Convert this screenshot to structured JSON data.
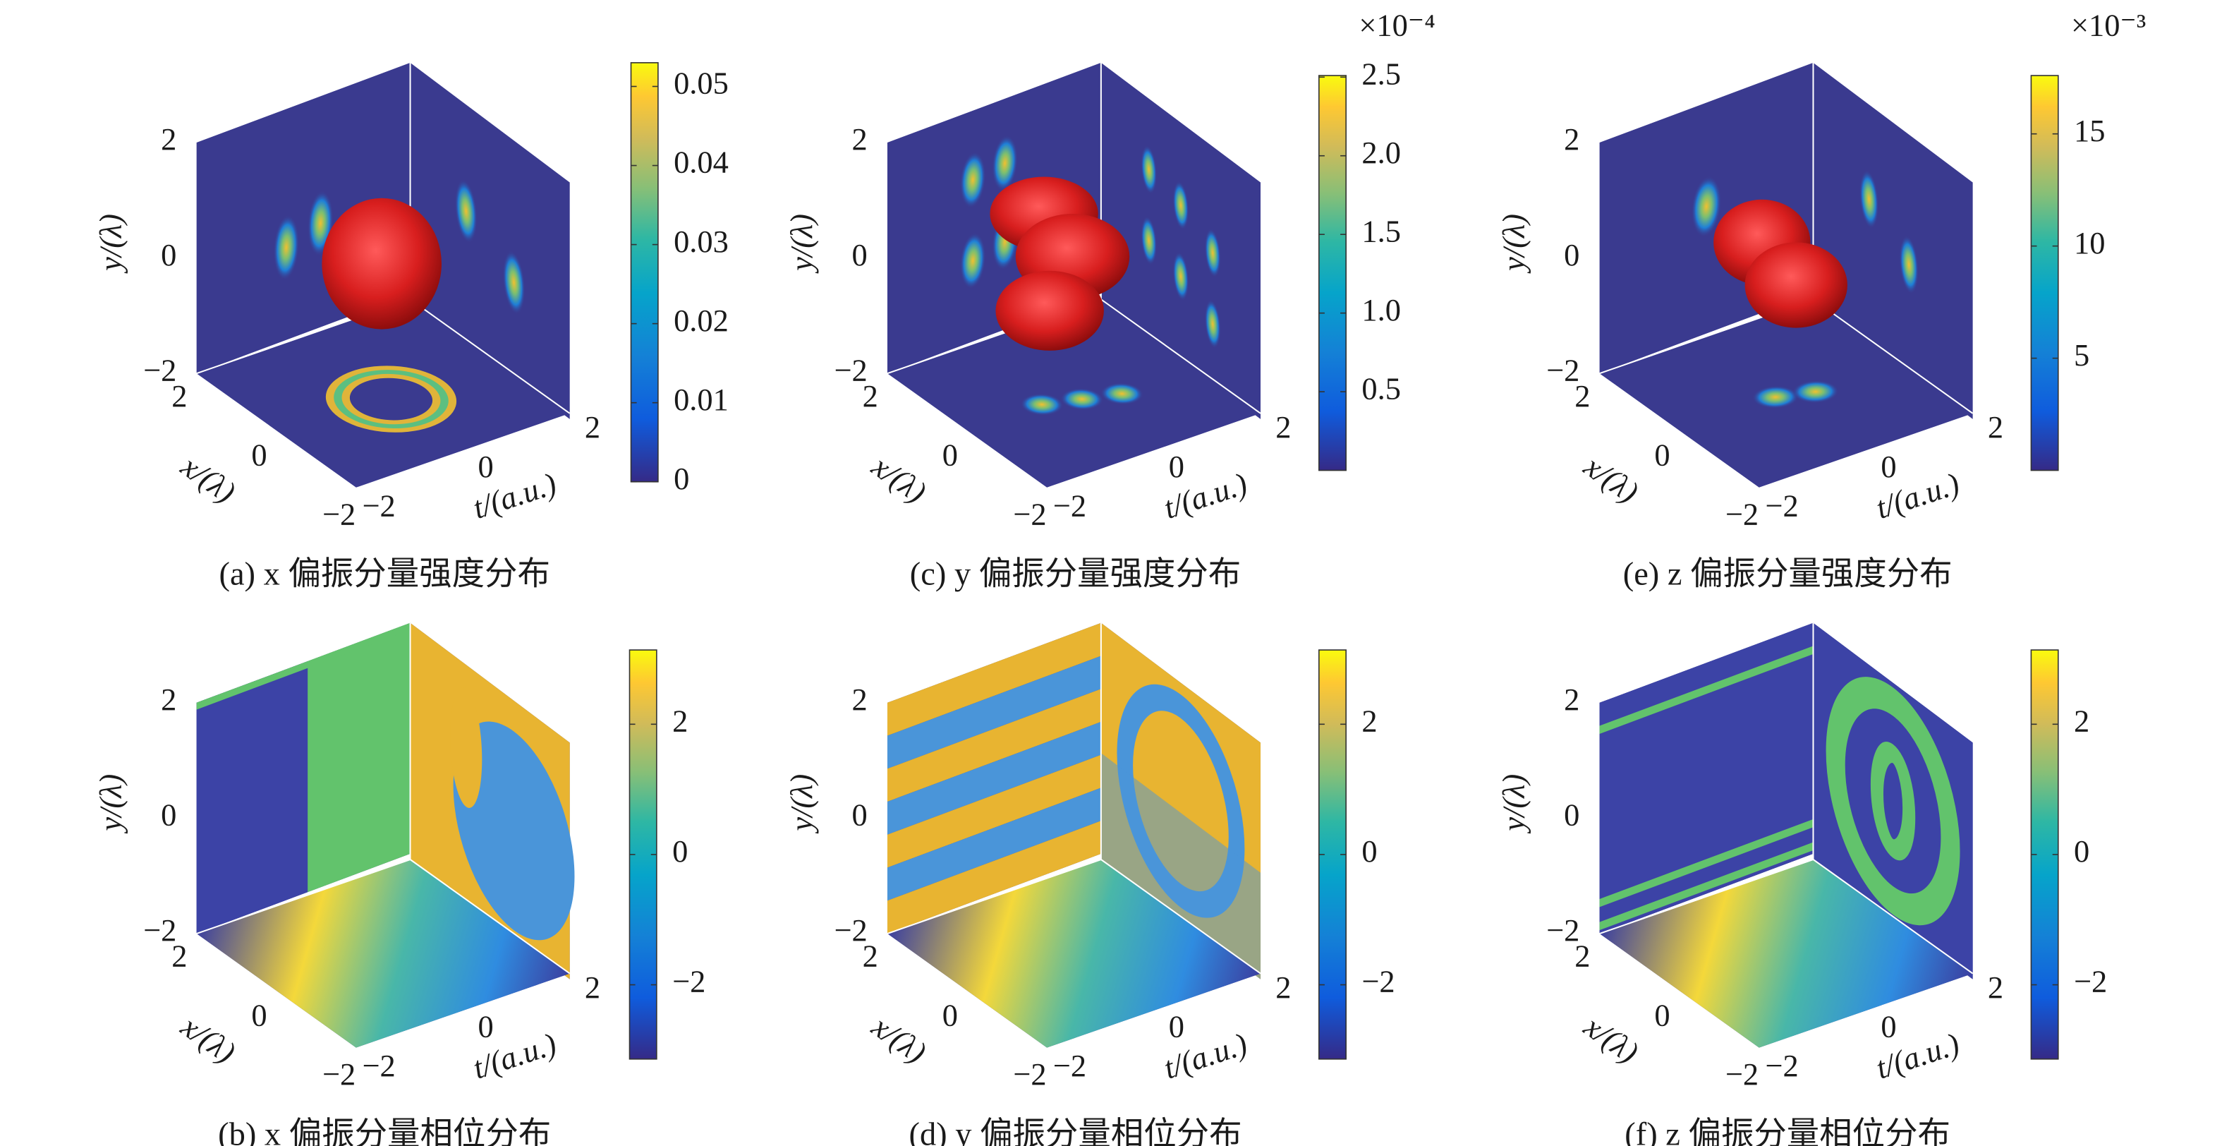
{
  "chart_data": [
    {
      "type": "volume",
      "title": "(a) x 偏振分量强度分布",
      "ylabel": "y/(λ)",
      "xlabel": "x/(λ)",
      "tlabel": "t/(a.u.)",
      "xlim": [
        -2,
        2
      ],
      "ylim": [
        -2,
        2
      ],
      "tlim": [
        -2,
        2
      ],
      "yticks": [
        {
          "value": -2,
          "label": "−2"
        },
        0,
        2
      ],
      "xticks": [
        {
          "value": -2,
          "label": "−2"
        },
        0,
        2
      ],
      "tticks": [
        {
          "value": -2,
          "label": "−2"
        },
        0,
        2
      ],
      "colorbar": {
        "lim": [
          0,
          0.053
        ],
        "ticks": [
          0,
          0.01,
          0.02,
          0.03,
          0.04,
          0.05
        ]
      }
    },
    {
      "type": "volume",
      "title": "(b) x 偏振分量相位分布",
      "ylabel": "y/(λ)",
      "xlabel": "x/(λ)",
      "tlabel": "t/(a.u.)",
      "xlim": [
        -2,
        2
      ],
      "ylim": [
        -2,
        2
      ],
      "tlim": [
        -2,
        2
      ],
      "yticks": [
        {
          "value": -2,
          "label": "−2"
        },
        0,
        2
      ],
      "xticks": [
        {
          "value": -2,
          "label": "−2"
        },
        0,
        2
      ],
      "tticks": [
        {
          "value": -2,
          "label": "−2"
        },
        0,
        2
      ],
      "colorbar": {
        "lim": [
          -3.14,
          3.14
        ],
        "ticks": [
          {
            "value": -2,
            "label": "−2"
          },
          0,
          2
        ]
      }
    },
    {
      "type": "volume",
      "title": "(c) y 偏振分量强度分布",
      "ylabel": "y/(λ)",
      "xlabel": "x/(λ)",
      "tlabel": "t/(a.u.)",
      "xlim": [
        -2,
        2
      ],
      "ylim": [
        -2,
        2
      ],
      "tlim": [
        -2,
        2
      ],
      "yticks": [
        {
          "value": -2,
          "label": "−2"
        },
        0,
        2
      ],
      "xticks": [
        {
          "value": -2,
          "label": "−2"
        },
        0,
        2
      ],
      "tticks": [
        {
          "value": -2,
          "label": "−2"
        },
        0,
        2
      ],
      "colorbar": {
        "lim": [
          0,
          2.51
        ],
        "exponent": "×10⁻⁴",
        "ticks": [
          0.5,
          {
            "value": 1,
            "label": "1.0"
          },
          1.5,
          {
            "value": 2,
            "label": "2.0"
          },
          2.5
        ]
      }
    },
    {
      "type": "volume",
      "title": "(d) y 偏振分量相位分布",
      "ylabel": "y/(λ)",
      "xlabel": "x/(λ)",
      "tlabel": "t/(a.u.)",
      "xlim": [
        -2,
        2
      ],
      "ylim": [
        -2,
        2
      ],
      "tlim": [
        -2,
        2
      ],
      "yticks": [
        {
          "value": -2,
          "label": "−2"
        },
        0,
        2
      ],
      "xticks": [
        {
          "value": -2,
          "label": "−2"
        },
        0,
        2
      ],
      "tticks": [
        {
          "value": -2,
          "label": "−2"
        },
        0,
        2
      ],
      "colorbar": {
        "lim": [
          -3.14,
          3.14
        ],
        "ticks": [
          {
            "value": -2,
            "label": "−2"
          },
          0,
          2
        ]
      }
    },
    {
      "type": "volume",
      "title": "(e) z 偏振分量强度分布",
      "ylabel": "y/(λ)",
      "xlabel": "x/(λ)",
      "tlabel": "t/(a.u.)",
      "xlim": [
        -2,
        2
      ],
      "ylim": [
        -2,
        2
      ],
      "tlim": [
        -2,
        2
      ],
      "yticks": [
        {
          "value": -2,
          "label": "−2"
        },
        0,
        2
      ],
      "xticks": [
        {
          "value": -2,
          "label": "−2"
        },
        0,
        2
      ],
      "tticks": [
        {
          "value": -2,
          "label": "−2"
        },
        0,
        2
      ],
      "colorbar": {
        "lim": [
          0,
          17.6
        ],
        "exponent": "×10⁻³",
        "ticks": [
          5,
          10,
          15
        ]
      }
    },
    {
      "type": "volume",
      "title": "(f) z 偏振分量相位分布",
      "ylabel": "y/(λ)",
      "xlabel": "x/(λ)",
      "tlabel": "t/(a.u.)",
      "xlim": [
        -2,
        2
      ],
      "ylim": [
        -2,
        2
      ],
      "tlim": [
        -2,
        2
      ],
      "yticks": [
        {
          "value": -2,
          "label": "−2"
        },
        0,
        2
      ],
      "xticks": [
        {
          "value": -2,
          "label": "−2"
        },
        0,
        2
      ],
      "tticks": [
        {
          "value": -2,
          "label": "−2"
        },
        0,
        2
      ],
      "colorbar": {
        "lim": [
          -3.14,
          3.14
        ],
        "ticks": [
          {
            "value": -2,
            "label": "−2"
          },
          0,
          2
        ]
      }
    }
  ]
}
